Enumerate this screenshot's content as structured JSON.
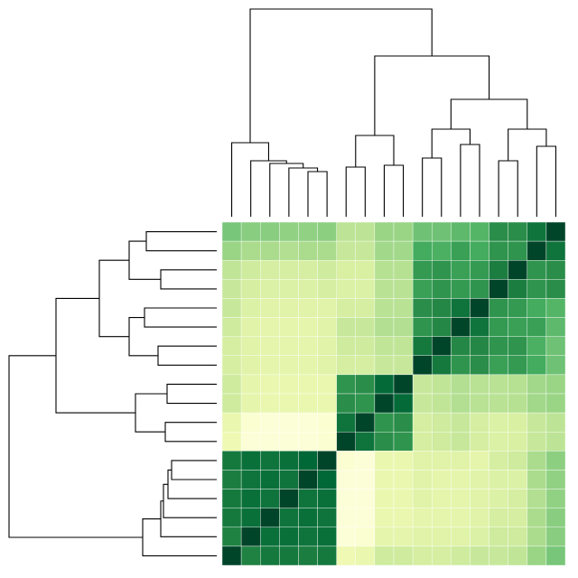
{
  "chart_data": {
    "type": "clustermap",
    "colormap": [
      "#ffffe5",
      "#f7fcb9",
      "#d9f0a3",
      "#addd8e",
      "#78c679",
      "#41ab5d",
      "#238443",
      "#006837",
      "#004529"
    ],
    "zlim": [
      0,
      1
    ],
    "values": [
      [
        0.5,
        0.46,
        0.46,
        0.44,
        0.44,
        0.45,
        0.33,
        0.33,
        0.42,
        0.42,
        0.52,
        0.52,
        0.56,
        0.58,
        0.72,
        0.72,
        0.82,
        1
      ],
      [
        0.42,
        0.38,
        0.38,
        0.36,
        0.38,
        0.38,
        0.3,
        0.3,
        0.4,
        0.4,
        0.62,
        0.6,
        0.66,
        0.62,
        0.7,
        0.7,
        1,
        0.82
      ],
      [
        0.32,
        0.28,
        0.26,
        0.26,
        0.26,
        0.28,
        0.25,
        0.25,
        0.35,
        0.35,
        0.68,
        0.7,
        0.66,
        0.68,
        0.78,
        1,
        0.7,
        0.72
      ],
      [
        0.3,
        0.26,
        0.24,
        0.24,
        0.24,
        0.26,
        0.24,
        0.24,
        0.34,
        0.34,
        0.66,
        0.7,
        0.68,
        0.7,
        1,
        0.78,
        0.7,
        0.72
      ],
      [
        0.3,
        0.24,
        0.22,
        0.22,
        0.22,
        0.22,
        0.26,
        0.26,
        0.34,
        0.34,
        0.72,
        0.74,
        0.82,
        1,
        0.7,
        0.68,
        0.62,
        0.58
      ],
      [
        0.28,
        0.22,
        0.2,
        0.2,
        0.2,
        0.22,
        0.3,
        0.3,
        0.36,
        0.36,
        0.7,
        0.74,
        1,
        0.82,
        0.68,
        0.66,
        0.66,
        0.56
      ],
      [
        0.26,
        0.22,
        0.2,
        0.2,
        0.2,
        0.22,
        0.28,
        0.28,
        0.32,
        0.32,
        0.8,
        1,
        0.74,
        0.74,
        0.7,
        0.7,
        0.6,
        0.52
      ],
      [
        0.26,
        0.22,
        0.2,
        0.2,
        0.2,
        0.22,
        0.26,
        0.26,
        0.3,
        0.3,
        1,
        0.8,
        0.7,
        0.72,
        0.66,
        0.68,
        0.62,
        0.52
      ],
      [
        0.28,
        0.2,
        0.18,
        0.18,
        0.18,
        0.18,
        0.7,
        0.72,
        0.86,
        1,
        0.3,
        0.32,
        0.36,
        0.34,
        0.34,
        0.35,
        0.4,
        0.42
      ],
      [
        0.28,
        0.2,
        0.18,
        0.18,
        0.18,
        0.18,
        0.72,
        0.7,
        1,
        0.86,
        0.3,
        0.32,
        0.36,
        0.34,
        0.34,
        0.35,
        0.4,
        0.42
      ],
      [
        0.18,
        0.06,
        0.04,
        0.04,
        0.04,
        0.06,
        0.82,
        1,
        0.7,
        0.72,
        0.26,
        0.28,
        0.3,
        0.26,
        0.24,
        0.25,
        0.3,
        0.33
      ],
      [
        0.16,
        0.04,
        0.04,
        0.04,
        0.04,
        0.06,
        1,
        0.82,
        0.72,
        0.7,
        0.26,
        0.28,
        0.3,
        0.26,
        0.24,
        0.25,
        0.3,
        0.33
      ],
      [
        0.8,
        0.84,
        0.82,
        0.84,
        0.88,
        1,
        0.06,
        0.04,
        0.18,
        0.18,
        0.22,
        0.22,
        0.22,
        0.2,
        0.26,
        0.28,
        0.38,
        0.45
      ],
      [
        0.78,
        0.82,
        0.84,
        0.82,
        1,
        0.88,
        0.04,
        0.04,
        0.18,
        0.18,
        0.22,
        0.2,
        0.2,
        0.22,
        0.24,
        0.24,
        0.38,
        0.44
      ],
      [
        0.8,
        0.84,
        0.82,
        1,
        0.82,
        0.84,
        0.04,
        0.04,
        0.18,
        0.18,
        0.22,
        0.2,
        0.2,
        0.22,
        0.24,
        0.26,
        0.36,
        0.44
      ],
      [
        0.8,
        0.84,
        1,
        0.82,
        0.84,
        0.82,
        0.04,
        0.04,
        0.18,
        0.18,
        0.2,
        0.2,
        0.2,
        0.22,
        0.26,
        0.26,
        0.38,
        0.46
      ],
      [
        0.76,
        1,
        0.84,
        0.84,
        0.82,
        0.84,
        0.04,
        0.06,
        0.2,
        0.2,
        0.22,
        0.22,
        0.22,
        0.24,
        0.28,
        0.28,
        0.38,
        0.46
      ],
      [
        1,
        0.76,
        0.8,
        0.8,
        0.78,
        0.8,
        0.16,
        0.18,
        0.28,
        0.28,
        0.26,
        0.26,
        0.28,
        0.3,
        0.3,
        0.32,
        0.42,
        0.5
      ]
    ],
    "col_dendrogram": [
      [
        4,
        5,
        50
      ],
      [
        3,
        18,
        54
      ],
      [
        2,
        19,
        59
      ],
      [
        1,
        20,
        62
      ],
      [
        0,
        21,
        82
      ],
      [
        6,
        7,
        55
      ],
      [
        8,
        9,
        57
      ],
      [
        23,
        24,
        90
      ],
      [
        10,
        11,
        65
      ],
      [
        12,
        13,
        80
      ],
      [
        26,
        27,
        97
      ],
      [
        14,
        15,
        62
      ],
      [
        16,
        17,
        78
      ],
      [
        29,
        30,
        97
      ],
      [
        28,
        31,
        130
      ],
      [
        25,
        32,
        178
      ],
      [
        22,
        33,
        230
      ]
    ],
    "row_dendrogram": [
      [
        0,
        1,
        78
      ],
      [
        2,
        3,
        62
      ],
      [
        18,
        19,
        97
      ],
      [
        4,
        5,
        80
      ],
      [
        6,
        7,
        65
      ],
      [
        21,
        22,
        97
      ],
      [
        20,
        23,
        130
      ],
      [
        8,
        9,
        55
      ],
      [
        10,
        11,
        57
      ],
      [
        25,
        26,
        90
      ],
      [
        24,
        27,
        178
      ],
      [
        12,
        13,
        50
      ],
      [
        29,
        14,
        54
      ],
      [
        30,
        15,
        59
      ],
      [
        31,
        16,
        62
      ],
      [
        32,
        17,
        82
      ],
      [
        28,
        33,
        230
      ]
    ]
  }
}
